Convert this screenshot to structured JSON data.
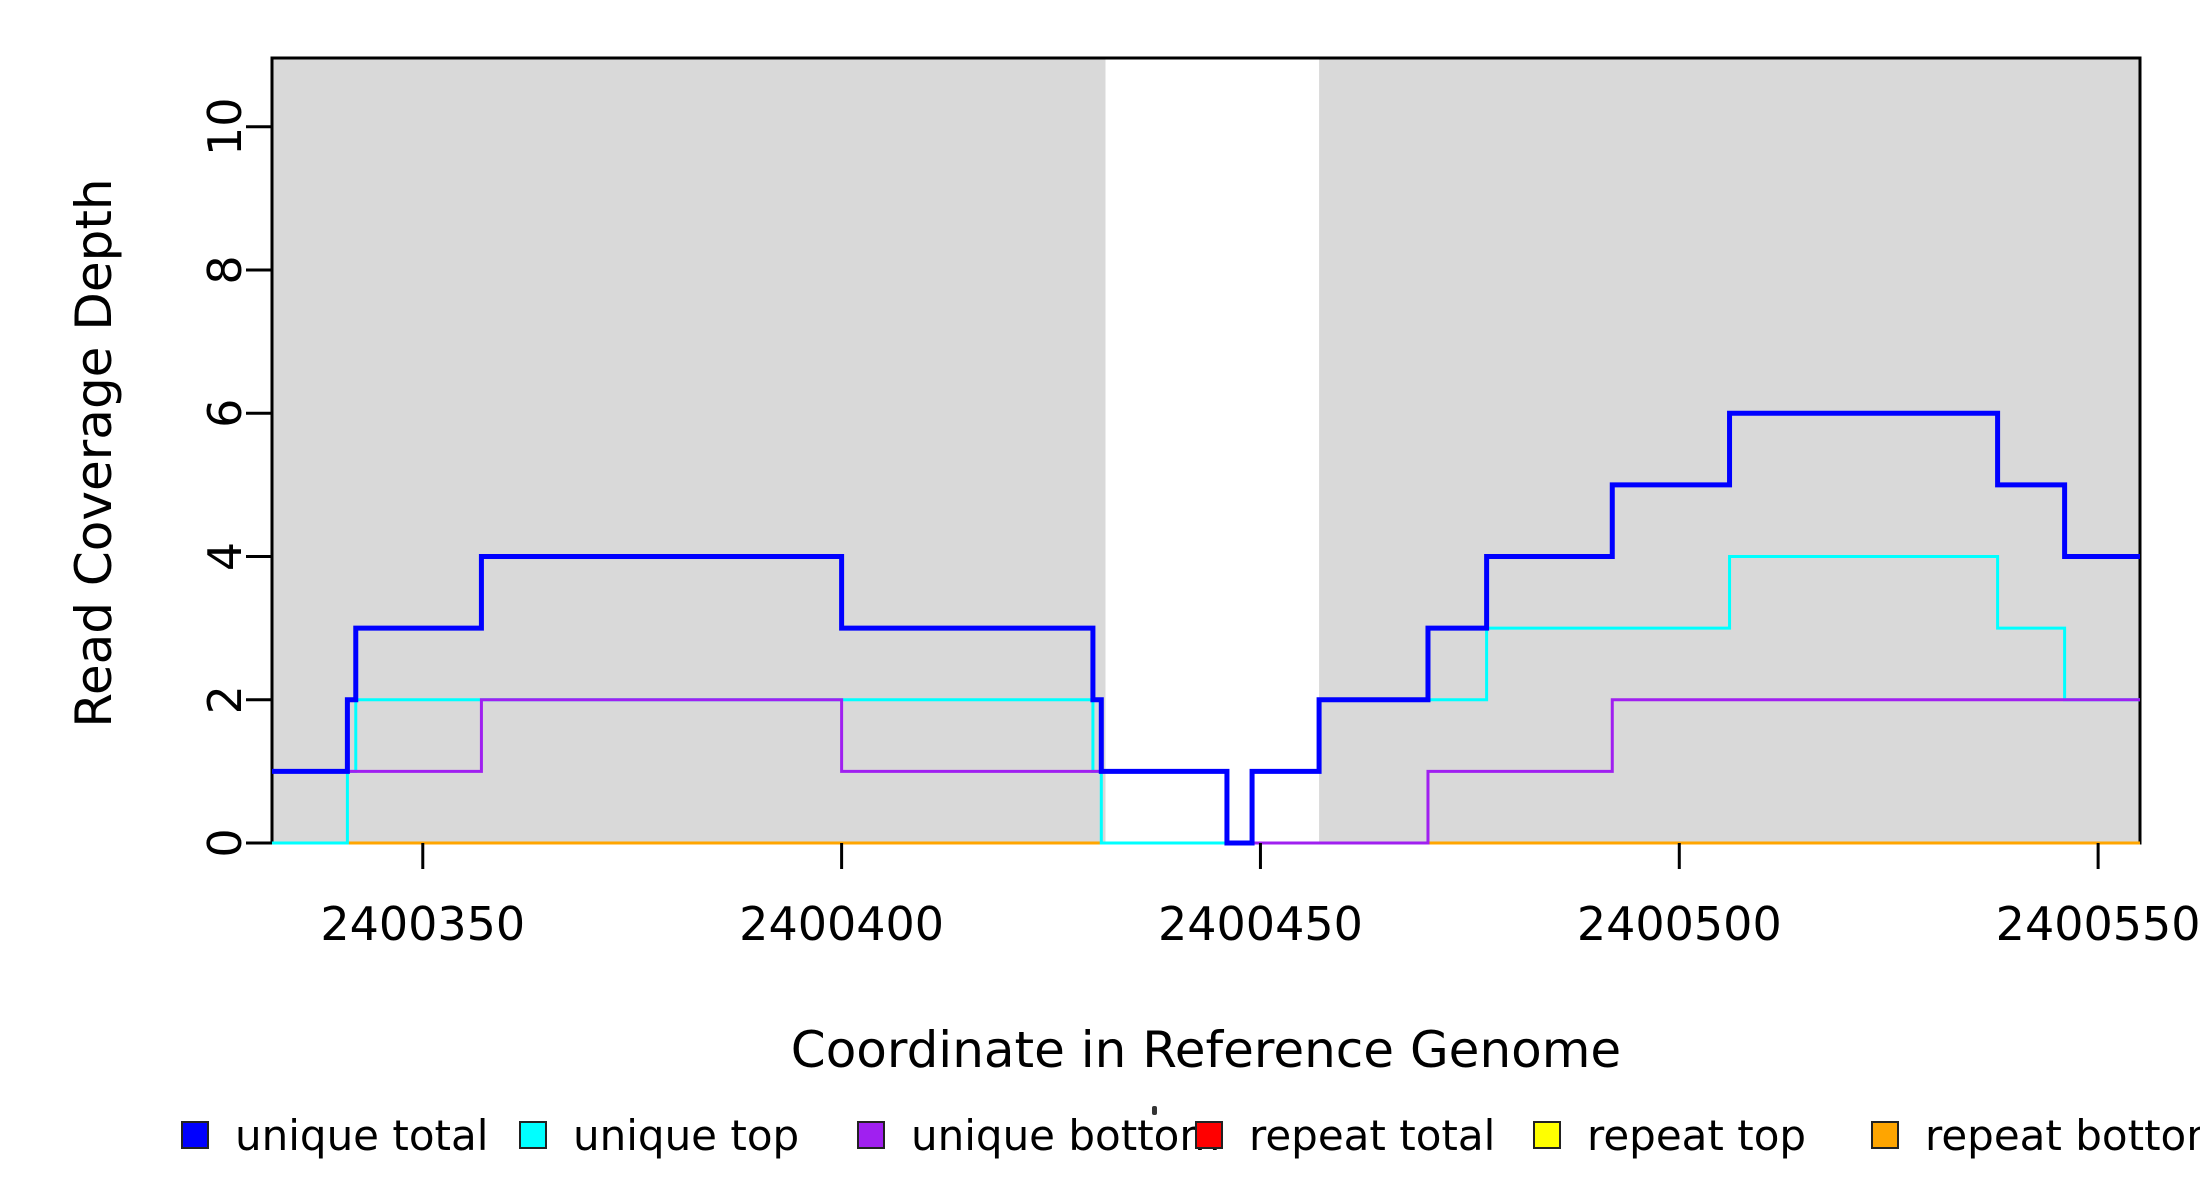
{
  "chart_data": {
    "type": "line",
    "subtype": "step",
    "title": "",
    "xlabel": "Coordinate in Reference Genome",
    "ylabel": "Read Coverage Depth",
    "xlim": [
      2400332,
      2400555
    ],
    "ylim": [
      0,
      10.96
    ],
    "x_ticks": [
      2400350,
      2400400,
      2400450,
      2400500,
      2400550
    ],
    "y_ticks": [
      0,
      2,
      4,
      6,
      8,
      10
    ],
    "grid": "off",
    "legend_position": "bottom",
    "shaded_regions": [
      {
        "x0": 2400332,
        "x1": 2400431.5,
        "color": "#d9d9d9"
      },
      {
        "x0": 2400457,
        "x1": 2400555,
        "color": "#d9d9d9"
      }
    ],
    "series": [
      {
        "name": "repeat total",
        "color": "#ff0000",
        "width": 3,
        "points": [
          [
            2400332,
            0
          ],
          [
            2400555,
            0
          ]
        ]
      },
      {
        "name": "repeat top",
        "color": "#ffff00",
        "width": 3,
        "points": [
          [
            2400332,
            0
          ],
          [
            2400555,
            0
          ]
        ]
      },
      {
        "name": "repeat bottom",
        "color": "#ffa500",
        "width": 3,
        "points": [
          [
            2400332,
            0
          ],
          [
            2400555,
            0
          ]
        ]
      },
      {
        "name": "unique top",
        "color": "#00ffff",
        "width": 3,
        "points": [
          [
            2400332,
            0
          ],
          [
            2400341,
            1
          ],
          [
            2400342,
            2
          ],
          [
            2400430,
            1
          ],
          [
            2400431,
            0
          ],
          [
            2400449,
            1
          ],
          [
            2400457,
            2
          ],
          [
            2400477,
            3
          ],
          [
            2400506,
            4
          ],
          [
            2400538,
            3
          ],
          [
            2400546,
            2
          ],
          [
            2400555,
            2
          ]
        ]
      },
      {
        "name": "unique bottom",
        "color": "#a020f0",
        "width": 3,
        "points": [
          [
            2400332,
            1
          ],
          [
            2400357,
            2
          ],
          [
            2400400,
            1
          ],
          [
            2400446,
            0
          ],
          [
            2400470,
            1
          ],
          [
            2400492,
            2
          ],
          [
            2400555,
            2
          ]
        ]
      },
      {
        "name": "unique total",
        "color": "#0000ff",
        "width": 5,
        "points": [
          [
            2400332,
            1
          ],
          [
            2400341,
            2
          ],
          [
            2400342,
            3
          ],
          [
            2400357,
            4
          ],
          [
            2400400,
            3
          ],
          [
            2400430,
            2
          ],
          [
            2400431,
            1
          ],
          [
            2400446,
            0
          ],
          [
            2400449,
            1
          ],
          [
            2400457,
            2
          ],
          [
            2400470,
            3
          ],
          [
            2400477,
            4
          ],
          [
            2400492,
            5
          ],
          [
            2400506,
            6
          ],
          [
            2400538,
            5
          ],
          [
            2400546,
            4
          ],
          [
            2400555,
            4
          ]
        ]
      }
    ],
    "legend": [
      {
        "label": "unique total",
        "color": "#0000ff"
      },
      {
        "label": "unique top",
        "color": "#00ffff"
      },
      {
        "label": "unique bottom",
        "color": "#a020f0"
      },
      {
        "label": "repeat total",
        "color": "#ff0000"
      },
      {
        "label": "repeat top",
        "color": "#ffff00"
      },
      {
        "label": "repeat bottom",
        "color": "#ffa500"
      }
    ]
  }
}
